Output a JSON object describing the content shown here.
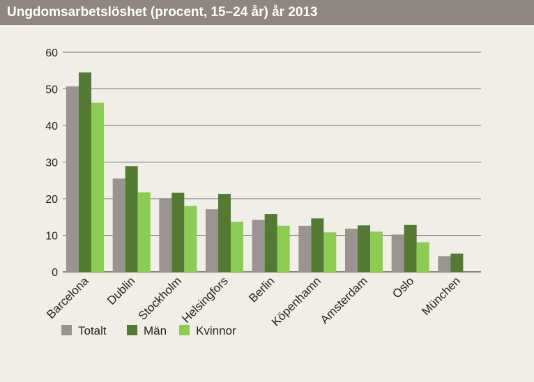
{
  "header": {
    "title": "Ungdomsarbetslöshet (procent, 15–24 år) år 2013"
  },
  "colors": {
    "header_bg": "#8f877f",
    "background": "#f0eee6",
    "Totalt": "#9b9390",
    "Män": "#537a33",
    "Kvinnor": "#8ccc52"
  },
  "chart_data": {
    "type": "bar",
    "title": "Ungdomsarbetslöshet (procent, 15–24 år) år 2013",
    "xlabel": "",
    "ylabel": "",
    "ylim": [
      0,
      60
    ],
    "yticks": [
      0,
      10,
      20,
      30,
      40,
      50,
      60
    ],
    "grid": true,
    "legend_position": "bottom-left",
    "categories": [
      "Barcelona",
      "Dublin",
      "Stockholm",
      "Helsingfors",
      "Berlin",
      "Köpenhamn",
      "Amsterdam",
      "Oslo",
      "München"
    ],
    "series": [
      {
        "name": "Totalt",
        "values": [
          50.7,
          25.5,
          19.9,
          17.1,
          14.2,
          12.6,
          11.8,
          10.2,
          4.3
        ]
      },
      {
        "name": "Män",
        "values": [
          54.5,
          28.9,
          21.6,
          21.3,
          15.8,
          14.6,
          12.7,
          12.8,
          5.0
        ]
      },
      {
        "name": "Kvinnor",
        "values": [
          46.2,
          21.7,
          18.0,
          13.7,
          12.6,
          10.8,
          11.0,
          8.1,
          null
        ]
      }
    ]
  }
}
